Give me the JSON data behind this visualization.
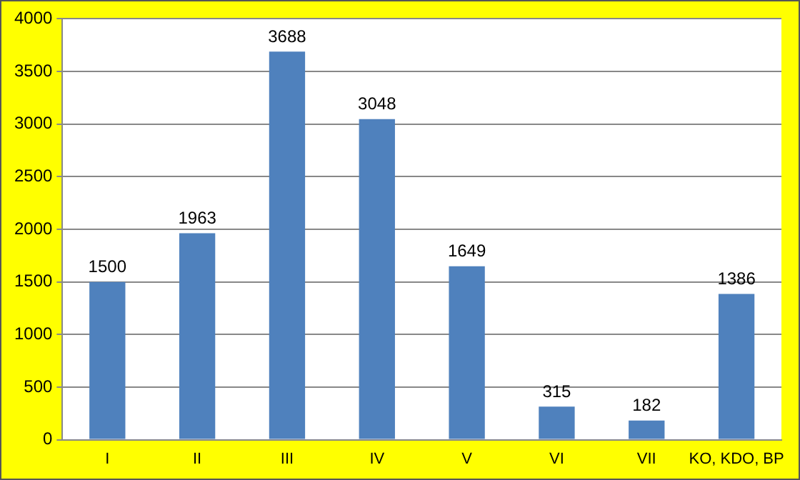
{
  "chart_data": {
    "type": "bar",
    "categories": [
      "I",
      "II",
      "III",
      "IV",
      "V",
      "VI",
      "VII",
      "KO, KDO, BP"
    ],
    "values": [
      1500,
      1963,
      3688,
      3048,
      1649,
      315,
      182,
      1386
    ],
    "color": "#4f81bd",
    "ylim": [
      0,
      4000
    ],
    "yticks": [
      0,
      500,
      1000,
      1500,
      2000,
      2500,
      3000,
      3500,
      4000
    ],
    "grid": "y",
    "data_labels": true,
    "legend": false
  }
}
